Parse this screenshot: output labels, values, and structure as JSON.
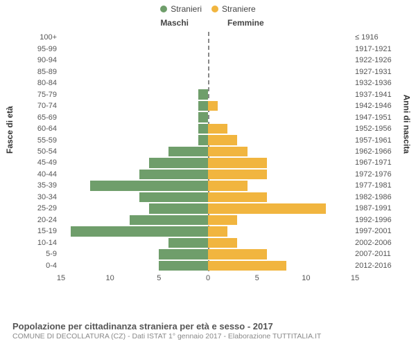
{
  "legend": {
    "male": "Stranieri",
    "female": "Straniere"
  },
  "headers": {
    "male": "Maschi",
    "female": "Femmine"
  },
  "yaxis": {
    "left_title": "Fasce di età",
    "right_title": "Anni di nascita"
  },
  "colors": {
    "male": "#6f9e6b",
    "female": "#f1b53f",
    "background": "#ffffff",
    "centerline": "#888888",
    "text": "#555555"
  },
  "xaxis": {
    "max": 15,
    "ticks": [
      15,
      10,
      5,
      0,
      5,
      10,
      15
    ]
  },
  "rows": [
    {
      "age": "100+",
      "birth": "≤ 1916",
      "m": 0,
      "f": 0
    },
    {
      "age": "95-99",
      "birth": "1917-1921",
      "m": 0,
      "f": 0
    },
    {
      "age": "90-94",
      "birth": "1922-1926",
      "m": 0,
      "f": 0
    },
    {
      "age": "85-89",
      "birth": "1927-1931",
      "m": 0,
      "f": 0
    },
    {
      "age": "80-84",
      "birth": "1932-1936",
      "m": 0,
      "f": 0
    },
    {
      "age": "75-79",
      "birth": "1937-1941",
      "m": 1,
      "f": 0
    },
    {
      "age": "70-74",
      "birth": "1942-1946",
      "m": 1,
      "f": 1
    },
    {
      "age": "65-69",
      "birth": "1947-1951",
      "m": 1,
      "f": 0
    },
    {
      "age": "60-64",
      "birth": "1952-1956",
      "m": 1,
      "f": 2
    },
    {
      "age": "55-59",
      "birth": "1957-1961",
      "m": 1,
      "f": 3
    },
    {
      "age": "50-54",
      "birth": "1962-1966",
      "m": 4,
      "f": 4
    },
    {
      "age": "45-49",
      "birth": "1967-1971",
      "m": 6,
      "f": 6
    },
    {
      "age": "40-44",
      "birth": "1972-1976",
      "m": 7,
      "f": 6
    },
    {
      "age": "35-39",
      "birth": "1977-1981",
      "m": 12,
      "f": 4
    },
    {
      "age": "30-34",
      "birth": "1982-1986",
      "m": 7,
      "f": 6
    },
    {
      "age": "25-29",
      "birth": "1987-1991",
      "m": 6,
      "f": 12
    },
    {
      "age": "20-24",
      "birth": "1992-1996",
      "m": 8,
      "f": 3
    },
    {
      "age": "15-19",
      "birth": "1997-2001",
      "m": 14,
      "f": 2
    },
    {
      "age": "10-14",
      "birth": "2002-2006",
      "m": 4,
      "f": 3
    },
    {
      "age": "5-9",
      "birth": "2007-2011",
      "m": 5,
      "f": 6
    },
    {
      "age": "0-4",
      "birth": "2012-2016",
      "m": 5,
      "f": 8
    }
  ],
  "caption": {
    "title": "Popolazione per cittadinanza straniera per età e sesso - 2017",
    "subtitle": "COMUNE DI DECOLLATURA (CZ) - Dati ISTAT 1° gennaio 2017 - Elaborazione TUTTITALIA.IT"
  }
}
